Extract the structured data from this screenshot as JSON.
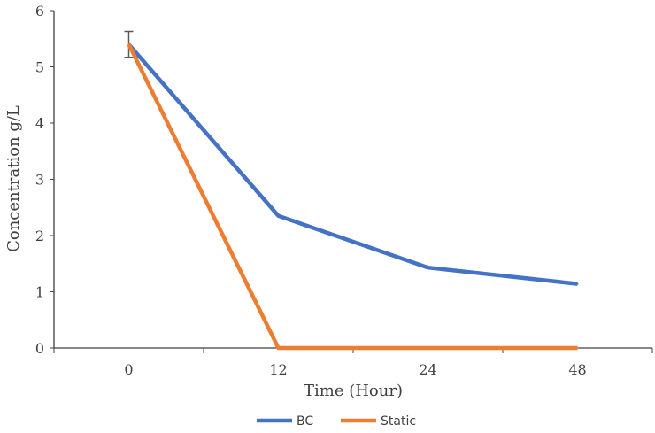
{
  "chart_data": {
    "type": "line",
    "title": "",
    "xlabel": "Time (Hour)",
    "ylabel": "Concentration g/L",
    "categories": [
      "0",
      "12",
      "24",
      "48"
    ],
    "ylim": [
      0,
      6
    ],
    "yticks": [
      0,
      1,
      2,
      3,
      4,
      5,
      6
    ],
    "grid": false,
    "legend_position": "bottom",
    "series": [
      {
        "name": "BC",
        "color": "#4472C4",
        "values": [
          5.4,
          2.35,
          1.43,
          1.14
        ],
        "error": [
          0.23,
          null,
          null,
          null
        ]
      },
      {
        "name": "Static",
        "color": "#ED7D31",
        "values": [
          5.4,
          0,
          0,
          0
        ]
      }
    ]
  }
}
